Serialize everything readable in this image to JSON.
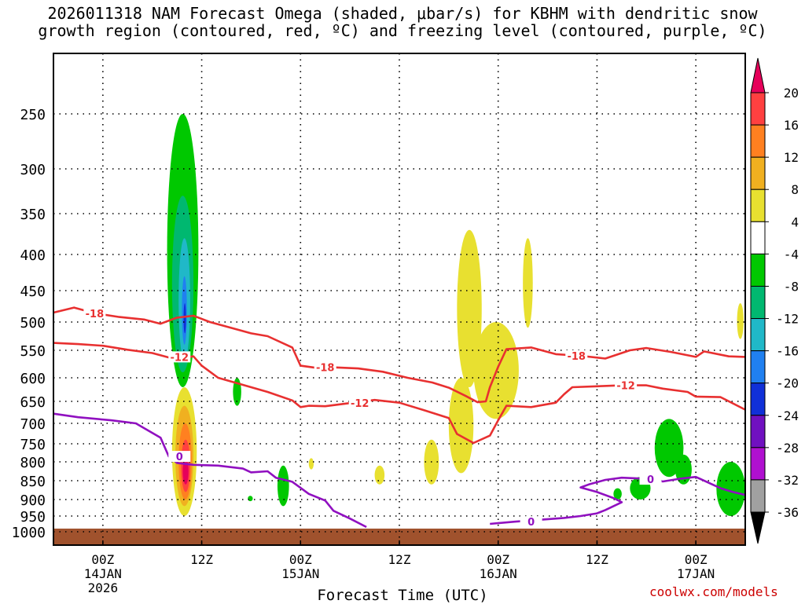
{
  "title_line1": "2026011318 NAM Forecast Omega (shaded, μbar/s) for KBHM with dendritic snow",
  "title_line2": "growth region (contoured, red, ºC) and freezing level (contoured, purple, ºC)",
  "watermark": "coolwx.com/models",
  "chart_data": {
    "type": "heatmap",
    "title": "2026011318 NAM Forecast Omega (shaded, μbar/s) for KBHM with dendritic snow growth region (contoured, red, ºC) and freezing level (contoured, purple, ºC)",
    "xlabel": "Forecast Time (UTC)",
    "ylabel": "",
    "y_axis": "pressure (hPa), reversed",
    "ylim": [
      1000,
      200
    ],
    "xlim_hours": [
      -6,
      78
    ],
    "y_ticks": [
      250,
      300,
      350,
      400,
      450,
      500,
      550,
      600,
      650,
      700,
      750,
      800,
      850,
      900,
      950,
      1000
    ],
    "x_ticks": [
      {
        "hour": 0,
        "lines": [
          "00Z",
          "14JAN",
          "2026"
        ]
      },
      {
        "hour": 12,
        "lines": [
          "12Z"
        ]
      },
      {
        "hour": 24,
        "lines": [
          "00Z",
          "15JAN"
        ]
      },
      {
        "hour": 36,
        "lines": [
          "12Z"
        ]
      },
      {
        "hour": 48,
        "lines": [
          "00Z",
          "16JAN"
        ]
      },
      {
        "hour": 60,
        "lines": [
          "12Z"
        ]
      },
      {
        "hour": 72,
        "lines": [
          "00Z",
          "17JAN"
        ]
      }
    ],
    "grid": true,
    "colorbar": {
      "units": "μbar/s",
      "levels": [
        "20",
        "16",
        "12",
        "8",
        "4",
        "-4",
        "-8",
        "-12",
        "-16",
        "-20",
        "-24",
        "-28",
        "-32",
        "-36"
      ],
      "colors": [
        "#e6005a",
        "#ff4040",
        "#ff8020",
        "#f0b020",
        "#e8e030",
        "#ffffff",
        "#00c800",
        "#00b870",
        "#20b8c8",
        "#2080f0",
        "#1030d8",
        "#7010c0",
        "#b010d0",
        "#a0a0a0",
        "#000000"
      ]
    },
    "contour_labels": [
      {
        "label": "-18",
        "color": "#e83030",
        "series": "dendritic growth upper"
      },
      {
        "label": "-12",
        "color": "#e83030",
        "series": "dendritic growth lower"
      },
      {
        "label": "0",
        "color": "#9010c0",
        "series": "freezing level"
      }
    ],
    "series": [
      {
        "kind": "contour",
        "value": -18,
        "color": "#e83030",
        "points": [
          [
            -6,
            485
          ],
          [
            -3.5,
            477
          ],
          [
            -1,
            486
          ],
          [
            2,
            492
          ],
          [
            5,
            496
          ],
          [
            7,
            503
          ],
          [
            9,
            493
          ],
          [
            11,
            490
          ],
          [
            13,
            500
          ],
          [
            16,
            512
          ],
          [
            18,
            520
          ],
          [
            20,
            525
          ],
          [
            23,
            545
          ],
          [
            24,
            578
          ],
          [
            26,
            582
          ],
          [
            28,
            581
          ],
          [
            31,
            583
          ],
          [
            34,
            589
          ],
          [
            37,
            600
          ],
          [
            40,
            610
          ],
          [
            42,
            621
          ],
          [
            44,
            638
          ],
          [
            45.5,
            652
          ],
          [
            46.5,
            650
          ],
          [
            47,
            620
          ],
          [
            48,
            580
          ],
          [
            49,
            548
          ],
          [
            52,
            545
          ],
          [
            55,
            557
          ],
          [
            58,
            560
          ],
          [
            61,
            565
          ],
          [
            64,
            550
          ],
          [
            66,
            546
          ],
          [
            69,
            553
          ],
          [
            72,
            562
          ],
          [
            73,
            552
          ],
          [
            76,
            561
          ],
          [
            78,
            562
          ]
        ]
      },
      {
        "kind": "contour",
        "value": -12,
        "color": "#e83030",
        "points": [
          [
            -6,
            537
          ],
          [
            -3,
            539
          ],
          [
            0,
            542
          ],
          [
            3,
            549
          ],
          [
            6,
            555
          ],
          [
            8,
            563
          ],
          [
            10,
            563
          ],
          [
            11,
            561
          ],
          [
            12,
            578
          ],
          [
            14,
            600
          ],
          [
            17,
            615
          ],
          [
            20,
            630
          ],
          [
            23,
            648
          ],
          [
            24,
            663
          ],
          [
            25,
            660
          ],
          [
            27,
            661
          ],
          [
            30,
            654
          ],
          [
            33,
            647
          ],
          [
            36,
            653
          ],
          [
            39,
            670
          ],
          [
            42,
            688
          ],
          [
            43,
            726
          ],
          [
            45,
            748
          ],
          [
            47,
            730
          ],
          [
            48,
            693
          ],
          [
            49,
            660
          ],
          [
            52,
            663
          ],
          [
            55,
            653
          ],
          [
            56,
            635
          ],
          [
            57,
            620
          ],
          [
            60,
            618
          ],
          [
            63,
            616
          ],
          [
            66,
            616
          ],
          [
            68,
            623
          ],
          [
            71,
            630
          ],
          [
            72,
            640
          ],
          [
            75,
            641
          ],
          [
            78,
            669
          ]
        ]
      },
      {
        "kind": "contour",
        "value": 0,
        "color": "#9010c0",
        "points": [
          [
            -6,
            678
          ],
          [
            -3,
            686
          ],
          [
            1,
            693
          ],
          [
            4,
            700
          ],
          [
            7,
            735
          ],
          [
            8,
            785
          ],
          [
            9,
            803
          ],
          [
            11,
            808
          ],
          [
            14,
            810
          ],
          [
            17,
            818
          ],
          [
            18,
            828
          ],
          [
            20,
            825
          ],
          [
            21,
            842
          ],
          [
            23,
            853
          ],
          [
            25,
            885
          ],
          [
            27,
            903
          ],
          [
            28,
            934
          ],
          [
            30,
            958
          ],
          [
            32,
            985
          ]
        ]
      },
      {
        "kind": "contour",
        "value": 0,
        "color": "#9010c0",
        "points": [
          [
            47,
            975
          ],
          [
            50,
            968
          ],
          [
            53,
            962
          ],
          [
            56,
            956
          ],
          [
            58,
            950
          ],
          [
            60,
            942
          ],
          [
            61,
            932
          ],
          [
            63,
            908
          ],
          [
            62,
            896
          ],
          [
            60,
            880
          ],
          [
            58,
            868
          ],
          [
            59,
            860
          ],
          [
            61,
            848
          ],
          [
            63,
            842
          ],
          [
            66,
            845
          ],
          [
            68,
            852
          ],
          [
            70,
            845
          ],
          [
            72,
            840
          ],
          [
            75,
            870
          ],
          [
            76.5,
            880
          ],
          [
            78,
            888
          ]
        ]
      }
    ],
    "shaded_regions": [
      {
        "name": "strong upward motion column",
        "hours": [
          8,
          11.5
        ],
        "pressure": [
          250,
          620
        ],
        "min_value": -24
      },
      {
        "name": "strong downward motion column",
        "hours": [
          8.5,
          11.5
        ],
        "pressure": [
          620,
          950
        ],
        "max_value": 20
      },
      {
        "name": "weak descent dendritic zone",
        "hours": [
          41,
          50.5
        ],
        "pressure": [
          370,
          840
        ],
        "max_value": 8
      },
      {
        "name": "ascent late period",
        "hours": [
          64,
          78
        ],
        "pressure": [
          690,
          950
        ],
        "min_value": -8
      }
    ],
    "surface_fill_color": "#a0522d"
  }
}
